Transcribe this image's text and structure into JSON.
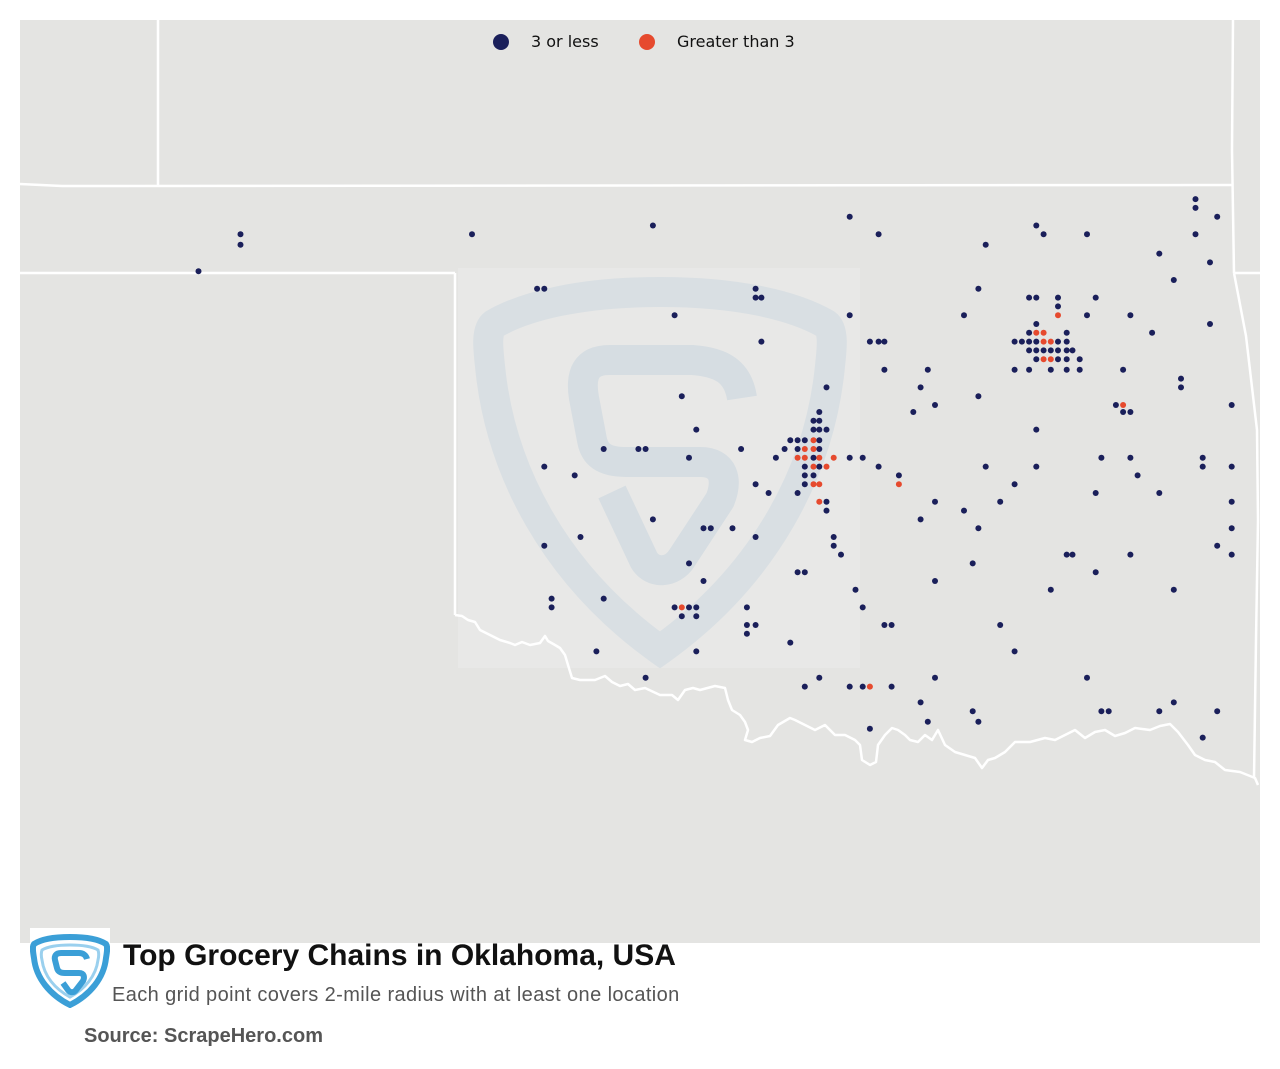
{
  "title": "Top Grocery Chains in Oklahoma, USA",
  "subtitle": "Each grid point covers 2-mile radius with at least one location",
  "source": "Source: ScrapeHero.com",
  "icons": {
    "logo": "scrapehero-logo-icon",
    "watermark": "scrapehero-watermark-icon"
  },
  "colors": {
    "map_background": "#e4e4e2",
    "border": "#ffffff",
    "logo": "#3b9fd7"
  },
  "map_data": {
    "series": [
      {
        "name": "3 or less",
        "color": "#1a1f5a",
        "points": [
          [
            -101.48,
            36.72
          ],
          [
            -101.48,
            36.66
          ],
          [
            -101.77,
            36.51
          ],
          [
            -99.88,
            36.72
          ],
          [
            -98.63,
            36.77
          ],
          [
            -97.27,
            36.82
          ],
          [
            -97.07,
            36.72
          ],
          [
            -96.33,
            36.66
          ],
          [
            -95.98,
            36.77
          ],
          [
            -95.93,
            36.72
          ],
          [
            -95.63,
            36.72
          ],
          [
            -94.88,
            36.92
          ],
          [
            -94.88,
            36.87
          ],
          [
            -94.73,
            36.82
          ],
          [
            -94.88,
            36.72
          ],
          [
            -95.13,
            36.61
          ],
          [
            -94.78,
            36.56
          ],
          [
            -95.03,
            36.46
          ],
          [
            -99.43,
            36.41
          ],
          [
            -99.38,
            36.41
          ],
          [
            -97.92,
            36.41
          ],
          [
            -97.92,
            36.36
          ],
          [
            -97.88,
            36.36
          ],
          [
            -96.38,
            36.41
          ],
          [
            -96.03,
            36.36
          ],
          [
            -95.98,
            36.36
          ],
          [
            -95.83,
            36.36
          ],
          [
            -95.57,
            36.36
          ],
          [
            -95.83,
            36.31
          ],
          [
            -98.48,
            36.26
          ],
          [
            -97.27,
            36.26
          ],
          [
            -96.48,
            36.26
          ],
          [
            -95.63,
            36.26
          ],
          [
            -95.33,
            36.26
          ],
          [
            -94.78,
            36.21
          ],
          [
            -95.98,
            36.21
          ],
          [
            -96.03,
            36.16
          ],
          [
            -95.77,
            36.16
          ],
          [
            -95.18,
            36.16
          ],
          [
            -96.13,
            36.11
          ],
          [
            -96.08,
            36.11
          ],
          [
            -96.03,
            36.11
          ],
          [
            -95.98,
            36.11
          ],
          [
            -95.83,
            36.11
          ],
          [
            -95.77,
            36.11
          ],
          [
            -97.13,
            36.11
          ],
          [
            -97.07,
            36.11
          ],
          [
            -97.03,
            36.11
          ],
          [
            -97.88,
            36.11
          ],
          [
            -96.03,
            36.06
          ],
          [
            -95.98,
            36.06
          ],
          [
            -95.93,
            36.06
          ],
          [
            -95.88,
            36.06
          ],
          [
            -95.83,
            36.06
          ],
          [
            -95.77,
            36.06
          ],
          [
            -95.73,
            36.06
          ],
          [
            -95.98,
            36.01
          ],
          [
            -95.83,
            36.01
          ],
          [
            -95.77,
            36.01
          ],
          [
            -95.68,
            36.01
          ],
          [
            -96.13,
            35.95
          ],
          [
            -96.03,
            35.95
          ],
          [
            -95.88,
            35.95
          ],
          [
            -95.77,
            35.95
          ],
          [
            -95.68,
            35.95
          ],
          [
            -97.03,
            35.95
          ],
          [
            -96.73,
            35.95
          ],
          [
            -95.38,
            35.95
          ],
          [
            -94.98,
            35.9
          ],
          [
            -94.98,
            35.85
          ],
          [
            -97.43,
            35.85
          ],
          [
            -96.78,
            35.85
          ],
          [
            -98.43,
            35.8
          ],
          [
            -96.38,
            35.8
          ],
          [
            -95.43,
            35.75
          ],
          [
            -94.63,
            35.75
          ],
          [
            -96.68,
            35.75
          ],
          [
            -95.38,
            35.71
          ],
          [
            -95.33,
            35.71
          ],
          [
            -96.83,
            35.71
          ],
          [
            -97.48,
            35.71
          ],
          [
            -97.52,
            35.66
          ],
          [
            -97.48,
            35.66
          ],
          [
            -97.52,
            35.61
          ],
          [
            -97.48,
            35.61
          ],
          [
            -97.43,
            35.61
          ],
          [
            -98.33,
            35.61
          ],
          [
            -95.98,
            35.61
          ],
          [
            -97.68,
            35.55
          ],
          [
            -97.63,
            35.55
          ],
          [
            -97.58,
            35.55
          ],
          [
            -97.48,
            35.55
          ],
          [
            -97.72,
            35.5
          ],
          [
            -97.63,
            35.5
          ],
          [
            -97.48,
            35.5
          ],
          [
            -98.97,
            35.5
          ],
          [
            -98.73,
            35.5
          ],
          [
            -98.68,
            35.5
          ],
          [
            -98.02,
            35.5
          ],
          [
            -97.78,
            35.45
          ],
          [
            -97.52,
            35.45
          ],
          [
            -97.27,
            35.45
          ],
          [
            -97.18,
            35.45
          ],
          [
            -98.38,
            35.45
          ],
          [
            -95.53,
            35.45
          ],
          [
            -95.33,
            35.45
          ],
          [
            -94.83,
            35.45
          ],
          [
            -97.58,
            35.4
          ],
          [
            -97.48,
            35.4
          ],
          [
            -99.38,
            35.4
          ],
          [
            -97.07,
            35.4
          ],
          [
            -96.33,
            35.4
          ],
          [
            -95.98,
            35.4
          ],
          [
            -94.83,
            35.4
          ],
          [
            -94.63,
            35.4
          ],
          [
            -97.58,
            35.35
          ],
          [
            -97.52,
            35.35
          ],
          [
            -99.17,
            35.35
          ],
          [
            -96.93,
            35.35
          ],
          [
            -95.28,
            35.35
          ],
          [
            -97.58,
            35.3
          ],
          [
            -97.92,
            35.3
          ],
          [
            -96.13,
            35.3
          ],
          [
            -97.83,
            35.25
          ],
          [
            -97.63,
            35.25
          ],
          [
            -95.57,
            35.25
          ],
          [
            -95.13,
            35.25
          ],
          [
            -97.43,
            35.2
          ],
          [
            -96.68,
            35.2
          ],
          [
            -96.23,
            35.2
          ],
          [
            -94.63,
            35.2
          ],
          [
            -97.43,
            35.15
          ],
          [
            -96.48,
            35.15
          ],
          [
            -98.63,
            35.1
          ],
          [
            -96.78,
            35.1
          ],
          [
            -98.28,
            35.05
          ],
          [
            -98.23,
            35.05
          ],
          [
            -98.08,
            35.05
          ],
          [
            -96.38,
            35.05
          ],
          [
            -94.63,
            35.05
          ],
          [
            -99.13,
            35.0
          ],
          [
            -97.92,
            35.0
          ],
          [
            -97.38,
            35.0
          ],
          [
            -99.38,
            34.95
          ],
          [
            -97.38,
            34.95
          ],
          [
            -94.73,
            34.95
          ],
          [
            -97.33,
            34.9
          ],
          [
            -95.77,
            34.9
          ],
          [
            -95.73,
            34.9
          ],
          [
            -95.33,
            34.9
          ],
          [
            -94.63,
            34.9
          ],
          [
            -98.38,
            34.85
          ],
          [
            -96.42,
            34.85
          ],
          [
            -97.63,
            34.8
          ],
          [
            -97.58,
            34.8
          ],
          [
            -95.57,
            34.8
          ],
          [
            -98.28,
            34.75
          ],
          [
            -96.68,
            34.75
          ],
          [
            -97.23,
            34.7
          ],
          [
            -95.88,
            34.7
          ],
          [
            -95.03,
            34.7
          ],
          [
            -99.33,
            34.65
          ],
          [
            -98.97,
            34.65
          ],
          [
            -99.33,
            34.6
          ],
          [
            -98.48,
            34.6
          ],
          [
            -98.38,
            34.6
          ],
          [
            -98.33,
            34.6
          ],
          [
            -97.98,
            34.6
          ],
          [
            -97.18,
            34.6
          ],
          [
            -98.43,
            34.55
          ],
          [
            -98.33,
            34.55
          ],
          [
            -97.98,
            34.5
          ],
          [
            -97.92,
            34.5
          ],
          [
            -97.03,
            34.5
          ],
          [
            -96.98,
            34.5
          ],
          [
            -96.23,
            34.5
          ],
          [
            -97.98,
            34.45
          ],
          [
            -97.68,
            34.4
          ],
          [
            -99.02,
            34.35
          ],
          [
            -98.33,
            34.35
          ],
          [
            -96.13,
            34.35
          ],
          [
            -98.68,
            34.2
          ],
          [
            -97.48,
            34.2
          ],
          [
            -96.68,
            34.2
          ],
          [
            -95.63,
            34.2
          ],
          [
            -97.58,
            34.15
          ],
          [
            -97.27,
            34.15
          ],
          [
            -97.18,
            34.15
          ],
          [
            -96.98,
            34.15
          ],
          [
            -96.78,
            34.06
          ],
          [
            -95.03,
            34.06
          ],
          [
            -96.42,
            34.01
          ],
          [
            -95.53,
            34.01
          ],
          [
            -95.48,
            34.01
          ],
          [
            -95.13,
            34.01
          ],
          [
            -94.73,
            34.01
          ],
          [
            -96.73,
            33.95
          ],
          [
            -96.38,
            33.95
          ],
          [
            -97.13,
            33.91
          ],
          [
            -94.83,
            33.86
          ]
        ]
      },
      {
        "name": "Greater than 3",
        "color": "#e64a2e",
        "points": [
          [
            -95.83,
            36.26
          ],
          [
            -95.98,
            36.16
          ],
          [
            -95.93,
            36.16
          ],
          [
            -95.93,
            36.11
          ],
          [
            -95.88,
            36.11
          ],
          [
            -95.93,
            36.01
          ],
          [
            -95.88,
            36.01
          ],
          [
            -95.38,
            35.75
          ],
          [
            -97.52,
            35.55
          ],
          [
            -97.58,
            35.5
          ],
          [
            -97.52,
            35.5
          ],
          [
            -97.63,
            35.45
          ],
          [
            -97.58,
            35.45
          ],
          [
            -97.48,
            35.45
          ],
          [
            -97.38,
            35.45
          ],
          [
            -97.52,
            35.4
          ],
          [
            -97.43,
            35.4
          ],
          [
            -97.52,
            35.3
          ],
          [
            -97.48,
            35.3
          ],
          [
            -96.93,
            35.3
          ],
          [
            -97.48,
            35.2
          ],
          [
            -98.43,
            34.6
          ],
          [
            -97.13,
            34.15
          ]
        ]
      }
    ]
  }
}
